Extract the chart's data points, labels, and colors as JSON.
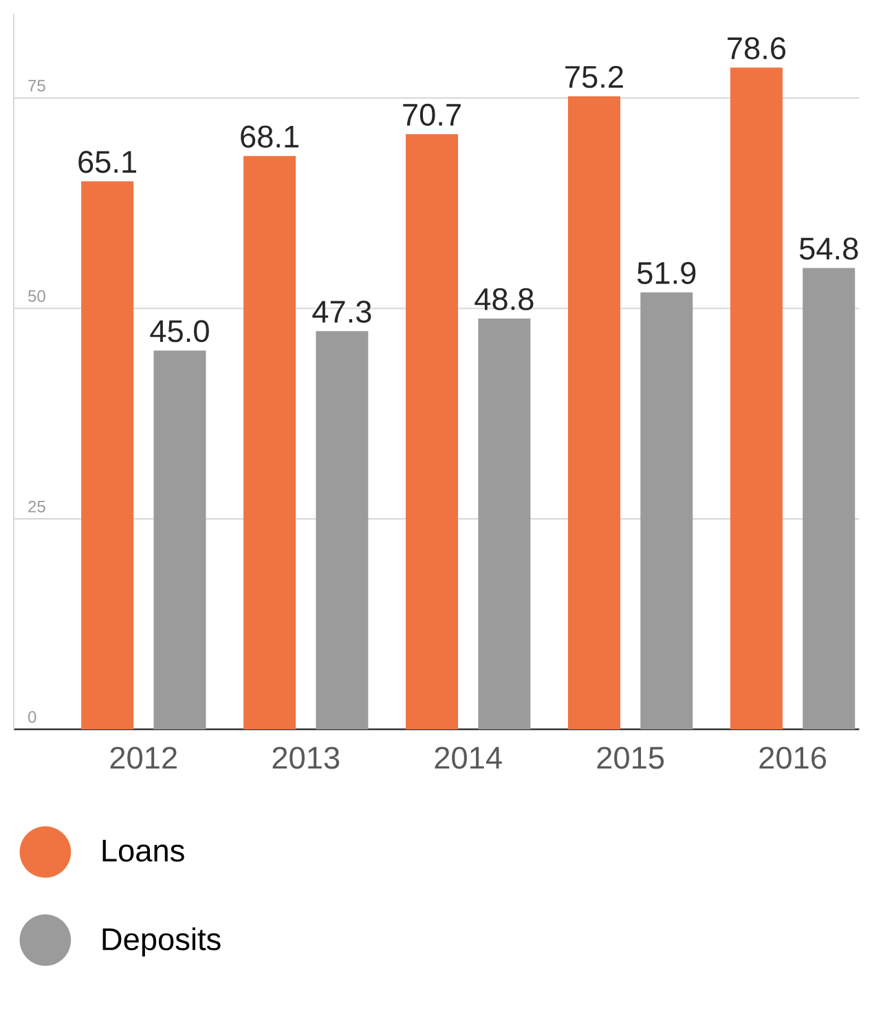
{
  "chart_data": {
    "type": "bar",
    "categories": [
      "2012",
      "2013",
      "2014",
      "2015",
      "2016"
    ],
    "series": [
      {
        "name": "Loans",
        "color": "#f07442",
        "values": [
          65.1,
          68.1,
          70.7,
          75.2,
          78.6
        ],
        "value_labels": [
          "65.1",
          "68.1",
          "70.7",
          "75.2",
          "78.6"
        ]
      },
      {
        "name": "Deposits",
        "color": "#9b9b9b",
        "values": [
          45.0,
          47.3,
          48.8,
          51.9,
          54.8
        ],
        "value_labels": [
          "45.0",
          "47.3",
          "48.8",
          "51.9",
          "54.8"
        ]
      }
    ],
    "ylim": [
      0,
      85
    ],
    "yticks": [
      0,
      25,
      50,
      75
    ],
    "grid": "y",
    "legend": "bottom left"
  }
}
